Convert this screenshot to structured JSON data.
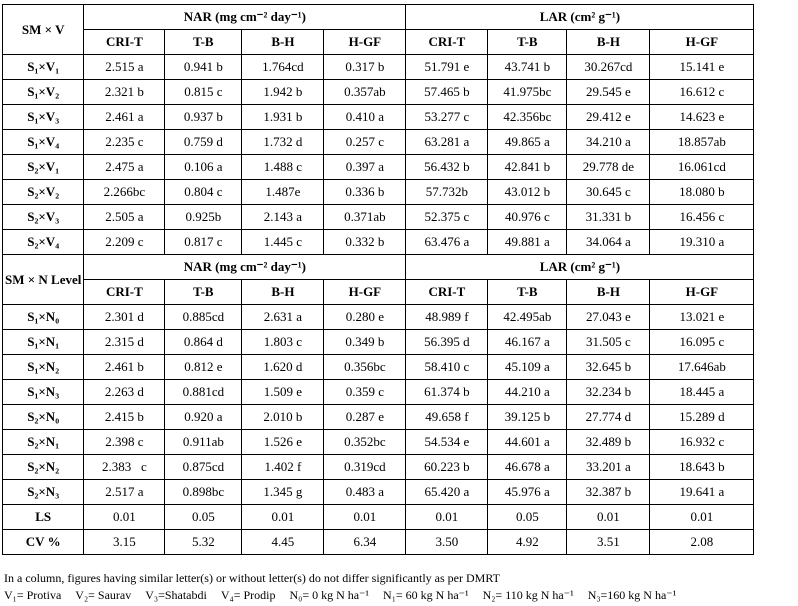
{
  "table": {
    "groups": [
      "NAR (mg cm⁻² day⁻¹)",
      "LAR (cm² g⁻¹)"
    ],
    "stages": [
      "CRI-T",
      "T-B",
      "B-H",
      "H-GF",
      "CRI-T",
      "T-B",
      "B-H",
      "H-GF"
    ],
    "sections": [
      {
        "label": "SM × V",
        "rows": [
          [
            "S₁×V₁",
            "2.515 a",
            "0.941 b",
            "1.764cd",
            "0.317 b",
            "51.791 e",
            "43.741 b",
            "30.267cd",
            "15.141 e"
          ],
          [
            "S₁×V₂",
            "2.321 b",
            "0.815 c",
            "1.942 b",
            "0.357ab",
            "57.465 b",
            "41.975bc",
            "29.545 e",
            "16.612 c"
          ],
          [
            "S₁×V₃",
            "2.461 a",
            "0.937 b",
            "1.931 b",
            "0.410 a",
            "53.277 c",
            "42.356bc",
            "29.412 e",
            "14.623 e"
          ],
          [
            "S₁×V₄",
            "2.235 c",
            "0.759 d",
            "1.732 d",
            "0.257 c",
            "63.281 a",
            "49.865 a",
            "34.210 a",
            "18.857ab"
          ],
          [
            "S₂×V₁",
            "2.475 a",
            "0.106 a",
            "1.488 c",
            "0.397 a",
            "56.432 b",
            "42.841 b",
            "29.778 de",
            "16.061cd"
          ],
          [
            "S₂×V₂",
            "2.266bc",
            "0.804 c",
            "1.487e",
            "0.336 b",
            "57.732b",
            "43.012 b",
            "30.645 c",
            "18.080 b"
          ],
          [
            "S₂×V₃",
            "2.505 a",
            "0.925b",
            "2.143 a",
            "0.371ab",
            "52.375 c",
            "40.976 c",
            "31.331 b",
            "16.456 c"
          ],
          [
            "S₂×V₄",
            "2.209 c",
            "0.817 c",
            "1.445 c",
            "0.332 b",
            "63.476 a",
            "49.881 a",
            "34.064 a",
            "19.310 a"
          ]
        ]
      },
      {
        "label": "SM × N Level",
        "rows": [
          [
            "S₁×N₀",
            "2.301 d",
            "0.885cd",
            "2.631 a",
            "0.280 e",
            "48.989 f",
            "42.495ab",
            "27.043 e",
            "13.021 e"
          ],
          [
            "S₁×N₁",
            "2.315 d",
            "0.864 d",
            "1.803 c",
            "0.349 b",
            "56.395 d",
            "46.167 a",
            "31.505 c",
            "16.095 c"
          ],
          [
            "S₁×N₂",
            "2.461 b",
            "0.812 e",
            "1.620 d",
            "0.356bc",
            "58.410 c",
            "45.109 a",
            "32.645 b",
            "17.646ab"
          ],
          [
            "S₁×N₃",
            "2.263 d",
            "0.881cd",
            "1.509 e",
            "0.359 c",
            "61.374 b",
            "44.210 a",
            "32.234 b",
            "18.445 a"
          ],
          [
            "S₂×N₀",
            "2.415 b",
            "0.920 a",
            "2.010 b",
            "0.287 e",
            "49.658 f",
            "39.125 b",
            "27.774 d",
            "15.289 d"
          ],
          [
            "S₂×N₁",
            "2.398 c",
            "0.911ab",
            "1.526 e",
            "0.352bc",
            "54.534 e",
            "44.601 a",
            "32.489 b",
            "16.932 c"
          ],
          [
            "S₂×N₂",
            "2.383   c",
            "0.875cd",
            "1.402 f",
            "0.319cd",
            "60.223 b",
            "46.678 a",
            "33.201 a",
            "18.643 b"
          ],
          [
            "S₂×N₃",
            "2.517 a",
            "0.898bc",
            "1.345 g",
            "0.483 a",
            "65.420 a",
            "45.976 a",
            "32.387 b",
            "19.641 a"
          ],
          [
            "LS",
            "0.01",
            "0.05",
            "0.01",
            "0.01",
            "0.01",
            "0.05",
            "0.01",
            "0.01"
          ],
          [
            "CV %",
            "3.15",
            "5.32",
            "4.45",
            "6.34",
            "3.50",
            "4.92",
            "3.51",
            "2.08"
          ]
        ]
      }
    ]
  },
  "notes": {
    "line1": "In a column, figures having similar letter(s) or without letter(s) do not differ significantly as per DMRT",
    "line2": [
      "V₁= Protiva",
      "V₂= Saurav",
      "V₃=Shatabdi",
      "V₄= Prodip",
      "N₀= 0 kg N ha⁻¹",
      "N₁= 60 kg N ha⁻¹",
      "N₂= 110 kg N ha⁻¹",
      "N₃=160 kg N ha⁻¹"
    ]
  }
}
